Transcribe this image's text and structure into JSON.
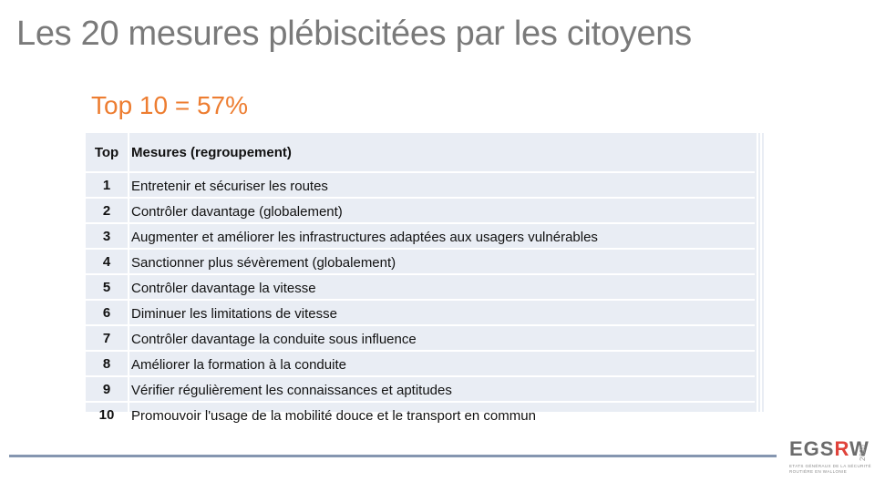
{
  "slide": {
    "title": "Les 20 mesures plébiscitées par les citoyens",
    "subtitle": "Top 10 = 57%"
  },
  "table": {
    "headers": {
      "rank": "Top",
      "measure": "Mesures (regroupement)"
    },
    "rows": [
      {
        "rank": "1",
        "measure": "Entretenir et sécuriser les routes"
      },
      {
        "rank": "2",
        "measure": "Contrôler davantage (globalement)"
      },
      {
        "rank": "3",
        "measure": "Augmenter et améliorer les infrastructures adaptées aux usagers vulnérables"
      },
      {
        "rank": "4",
        "measure": "Sanctionner plus sévèrement (globalement)"
      },
      {
        "rank": "5",
        "measure": "Contrôler davantage la vitesse"
      },
      {
        "rank": "6",
        "measure": "Diminuer les limitations de vitesse"
      },
      {
        "rank": "7",
        "measure": "Contrôler davantage la conduite sous influence"
      },
      {
        "rank": "8",
        "measure": "Améliorer la formation à la conduite"
      },
      {
        "rank": "9",
        "measure": "Vérifier régulièrement les connaissances et aptitudes"
      },
      {
        "rank": "10",
        "measure": "Promouvoir l'usage de la mobilité douce et le transport en commun"
      }
    ]
  },
  "logo": {
    "prefix": "EGS",
    "accent": "R",
    "suffix": "W",
    "year": "2020",
    "line1": "ETATS GÉNÉRAUX DE LA SÉCURITÉ",
    "line2": "ROUTIÈRE EN WALLONIE"
  },
  "colors": {
    "title": "#7a7a7a",
    "subtitle": "#ed7d31",
    "table_bg": "#e9edf4",
    "footer_line": "#8596b0",
    "logo_accent": "#e0433b"
  }
}
